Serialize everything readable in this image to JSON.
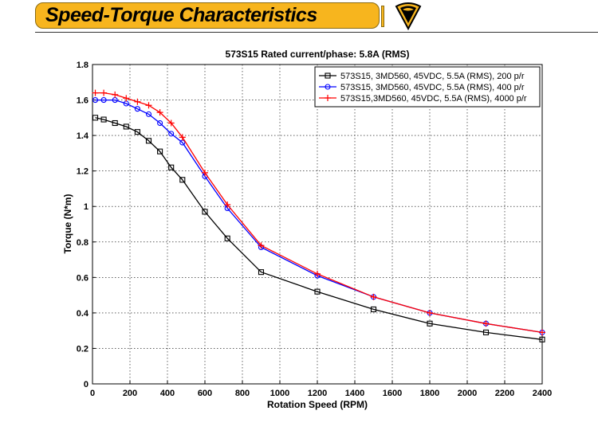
{
  "header": {
    "title": "Speed-Torque Characteristics",
    "accent_color": "#f7b51e",
    "logo_icon": "triangle-emblem-icon"
  },
  "chart_data": {
    "type": "line",
    "title": "573S15 Rated current/phase: 5.8A (RMS)",
    "xlabel": "Rotation Speed (RPM)",
    "ylabel": "Torque (N*m)",
    "xlim": [
      0,
      2400
    ],
    "ylim": [
      0,
      1.8
    ],
    "xticks": [
      0,
      200,
      400,
      600,
      800,
      1000,
      1200,
      1400,
      1600,
      1800,
      2000,
      2200,
      2400
    ],
    "yticks": [
      0,
      0.2,
      0.4,
      0.6,
      0.8,
      1,
      1.2,
      1.4,
      1.6,
      1.8
    ],
    "ytick_labels": [
      "0",
      "0.2",
      "0.4",
      "0.6",
      "0.8",
      "1",
      "1.2",
      "1.4",
      "1.6",
      "1.8"
    ],
    "grid": true,
    "legend_position": "top-right",
    "series": [
      {
        "name": "573S15, 3MD560, 45VDC, 5.5A (RMS), 200 p/r",
        "color": "#000000",
        "marker": "square",
        "x": [
          15,
          60,
          120,
          180,
          240,
          300,
          360,
          420,
          480,
          600,
          720,
          900,
          1200,
          1500,
          1800,
          2100,
          2400
        ],
        "y": [
          1.5,
          1.49,
          1.47,
          1.45,
          1.42,
          1.37,
          1.31,
          1.22,
          1.15,
          0.97,
          0.82,
          0.63,
          0.52,
          0.42,
          0.34,
          0.29,
          0.25
        ]
      },
      {
        "name": "573S15, 3MD560, 45VDC, 5.5A (RMS), 400 p/r",
        "color": "#0000ff",
        "marker": "circle",
        "x": [
          15,
          60,
          120,
          180,
          240,
          300,
          360,
          420,
          480,
          600,
          720,
          900,
          1200,
          1500,
          1800,
          2100,
          2400
        ],
        "y": [
          1.6,
          1.6,
          1.6,
          1.58,
          1.55,
          1.52,
          1.47,
          1.41,
          1.36,
          1.17,
          0.99,
          0.77,
          0.61,
          0.49,
          0.4,
          0.34,
          0.29
        ]
      },
      {
        "name": "573S15,3MD560, 45VDC, 5.5A (RMS), 4000 p/r",
        "color": "#ff0000",
        "marker": "plus",
        "x": [
          15,
          60,
          120,
          180,
          240,
          300,
          360,
          420,
          480,
          600,
          720,
          900,
          1200,
          1500,
          1800,
          2100,
          2400
        ],
        "y": [
          1.64,
          1.64,
          1.63,
          1.61,
          1.59,
          1.57,
          1.53,
          1.47,
          1.39,
          1.19,
          1.01,
          0.78,
          0.62,
          0.49,
          0.4,
          0.34,
          0.29
        ]
      }
    ]
  }
}
